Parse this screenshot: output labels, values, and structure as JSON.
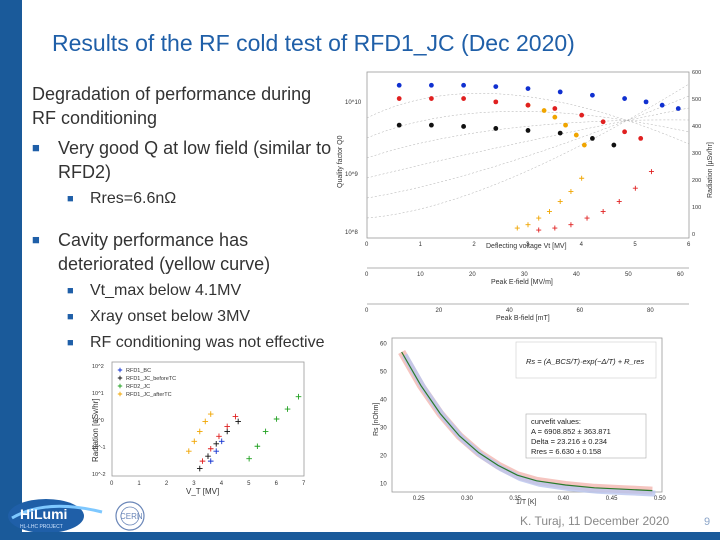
{
  "slide": {
    "title": "Results of the RF cold test of RFD1_JC (Dec 2020)",
    "heading": "Degradation of performance during RF conditioning",
    "bullets": [
      {
        "text": "Very good Q at low field (similar to RFD2)",
        "sub": [
          "Rres=6.6nΩ"
        ]
      },
      {
        "text": "Cavity performance has deteriorated (yellow curve)",
        "sub": [
          "Vt_max below 4.1MV",
          "Xray onset below 3MV",
          "RF conditioning was not effective"
        ]
      }
    ],
    "footer": "K. Turaj, 11 December 2020",
    "page_number": "9",
    "logo_text": "HiLumi",
    "logo_subtext": "HL-LHC PROJECT",
    "cern_text": "CERN"
  },
  "colors": {
    "title": "#1f5fa8",
    "bar": "#1a5a9a",
    "yellow": "#f0a500",
    "red": "#e02020",
    "blue": "#1030d0",
    "green": "#20a020",
    "black": "#111111"
  },
  "chart_data": [
    {
      "type": "scatter",
      "title": "",
      "xlabel": "Deflecting voltage Vt [MV]",
      "ylabel": "Quality factor Q0",
      "ylabel_right": "Radiation [µSv/hr]",
      "xlim": [
        0,
        6
      ],
      "xticks": [
        "0",
        "1",
        "2",
        "3",
        "4",
        "5",
        "6"
      ],
      "yticks_left": [
        "10^8",
        "10^9",
        "10^10"
      ],
      "yticks_right": [
        "0",
        "100",
        "200",
        "300",
        "400",
        "500",
        "600"
      ],
      "x2_label": "Peak E-field [MV/m]",
      "x2_ticks": [
        "0",
        "10",
        "20",
        "30",
        "40",
        "50",
        "60"
      ],
      "x3_label": "Peak B-field [mT]",
      "x3_ticks": [
        "0",
        "20",
        "40",
        "60",
        "80"
      ],
      "series": [
        {
          "color": "black",
          "marker": "dot",
          "x": [
            0.6,
            1.2,
            1.8,
            2.4,
            3.0,
            3.6,
            4.2,
            4.6
          ],
          "y": [
            9.6,
            9.6,
            9.58,
            9.55,
            9.52,
            9.48,
            9.4,
            9.3
          ]
        },
        {
          "color": "yellow",
          "marker": "dot",
          "x": [
            3.0,
            3.3,
            3.5,
            3.7,
            3.9,
            4.05
          ],
          "y": [
            9.9,
            9.82,
            9.72,
            9.6,
            9.45,
            9.3
          ]
        },
        {
          "color": "red",
          "marker": "dot",
          "x": [
            0.6,
            1.2,
            1.8,
            2.4,
            3.0,
            3.5,
            4.0,
            4.4,
            4.8,
            5.1
          ],
          "y": [
            10.0,
            10.0,
            10.0,
            9.95,
            9.9,
            9.85,
            9.75,
            9.65,
            9.5,
            9.4
          ]
        },
        {
          "color": "blue",
          "marker": "dot",
          "x": [
            0.6,
            1.2,
            1.8,
            2.4,
            3.0,
            3.6,
            4.2,
            4.8,
            5.2,
            5.5,
            5.8
          ],
          "y": [
            10.2,
            10.2,
            10.2,
            10.18,
            10.15,
            10.1,
            10.05,
            10.0,
            9.95,
            9.9,
            9.85
          ]
        },
        {
          "color": "yellow",
          "marker": "plus",
          "x": [
            2.8,
            3.0,
            3.2,
            3.4,
            3.6,
            3.8,
            4.0
          ],
          "y": [
            8.05,
            8.1,
            8.2,
            8.3,
            8.45,
            8.6,
            8.8
          ]
        },
        {
          "color": "red",
          "marker": "plus",
          "x": [
            3.2,
            3.5,
            3.8,
            4.1,
            4.4,
            4.7,
            5.0,
            5.3
          ],
          "y": [
            8.02,
            8.05,
            8.1,
            8.2,
            8.3,
            8.45,
            8.65,
            8.9
          ]
        }
      ]
    },
    {
      "type": "scatter",
      "title": "",
      "xlabel": "V_T [MV]",
      "ylabel": "Radiation [uSv/hr]",
      "yticks": [
        "10^2",
        "10^1",
        "10^0",
        "10^-1",
        "10^-2"
      ],
      "xticks": [
        "0",
        "1",
        "2",
        "3",
        "4",
        "5",
        "6",
        "7"
      ],
      "xlim": [
        0,
        7
      ],
      "legend": [
        "RFD1_BC",
        "RFD1_JC_beforeTC",
        "RFD2_JC",
        "RFD1_JC_afterTC"
      ],
      "legend_placement": "top-left",
      "series": [
        {
          "name": "RFD1_BC",
          "color": "blue",
          "x": [
            3.6,
            3.8,
            4.0
          ],
          "y": [
            -1.6,
            -1.2,
            -0.8
          ]
        },
        {
          "name": "RFD1_JC_beforeTC",
          "color": "black",
          "x": [
            3.2,
            3.5,
            3.8,
            4.2,
            4.6
          ],
          "y": [
            -1.9,
            -1.4,
            -0.9,
            -0.4,
            0.0
          ]
        },
        {
          "name": "RFD2_JC",
          "color": "green",
          "x": [
            5.0,
            5.3,
            5.6,
            6.0,
            6.4,
            6.8
          ],
          "y": [
            -1.5,
            -1.0,
            -0.4,
            0.1,
            0.5,
            1.0
          ]
        },
        {
          "name": "RFD1_JC_afterTC",
          "color": "yellow",
          "x": [
            2.8,
            3.0,
            3.2,
            3.4,
            3.6
          ],
          "y": [
            -1.2,
            -0.8,
            -0.4,
            0.0,
            0.3
          ]
        },
        {
          "name": "red",
          "color": "red",
          "x": [
            3.3,
            3.6,
            3.9,
            4.2,
            4.5
          ],
          "y": [
            -1.6,
            -1.1,
            -0.6,
            -0.2,
            0.2
          ]
        }
      ]
    },
    {
      "type": "line",
      "title": "",
      "xlabel": "1/T [K]",
      "ylabel": "Rs [nOhm]",
      "xticks": [
        "0.25",
        "0.30",
        "0.35",
        "0.40",
        "0.45",
        "0.50"
      ],
      "yticks": [
        "10",
        "20",
        "30",
        "40",
        "50",
        "60"
      ],
      "xlim": [
        0.22,
        0.5
      ],
      "ylim": [
        7,
        62
      ],
      "formula": "Rs = (A_BCS/T)·exp(−Δ/T) + R_res",
      "fit_box": {
        "title": "curvefit values:",
        "lines": [
          "A = 6908.852   ± 363.871",
          "Delta = 23.216  ± 0.234",
          "Rres = 6.630    ± 0.158"
        ]
      },
      "x": [
        0.23,
        0.25,
        0.27,
        0.29,
        0.31,
        0.33,
        0.35,
        0.37,
        0.4,
        0.43,
        0.46,
        0.49
      ],
      "y": [
        57,
        45,
        35,
        27,
        21,
        16.5,
        13,
        11,
        9.5,
        8.5,
        8,
        7.5
      ]
    }
  ]
}
